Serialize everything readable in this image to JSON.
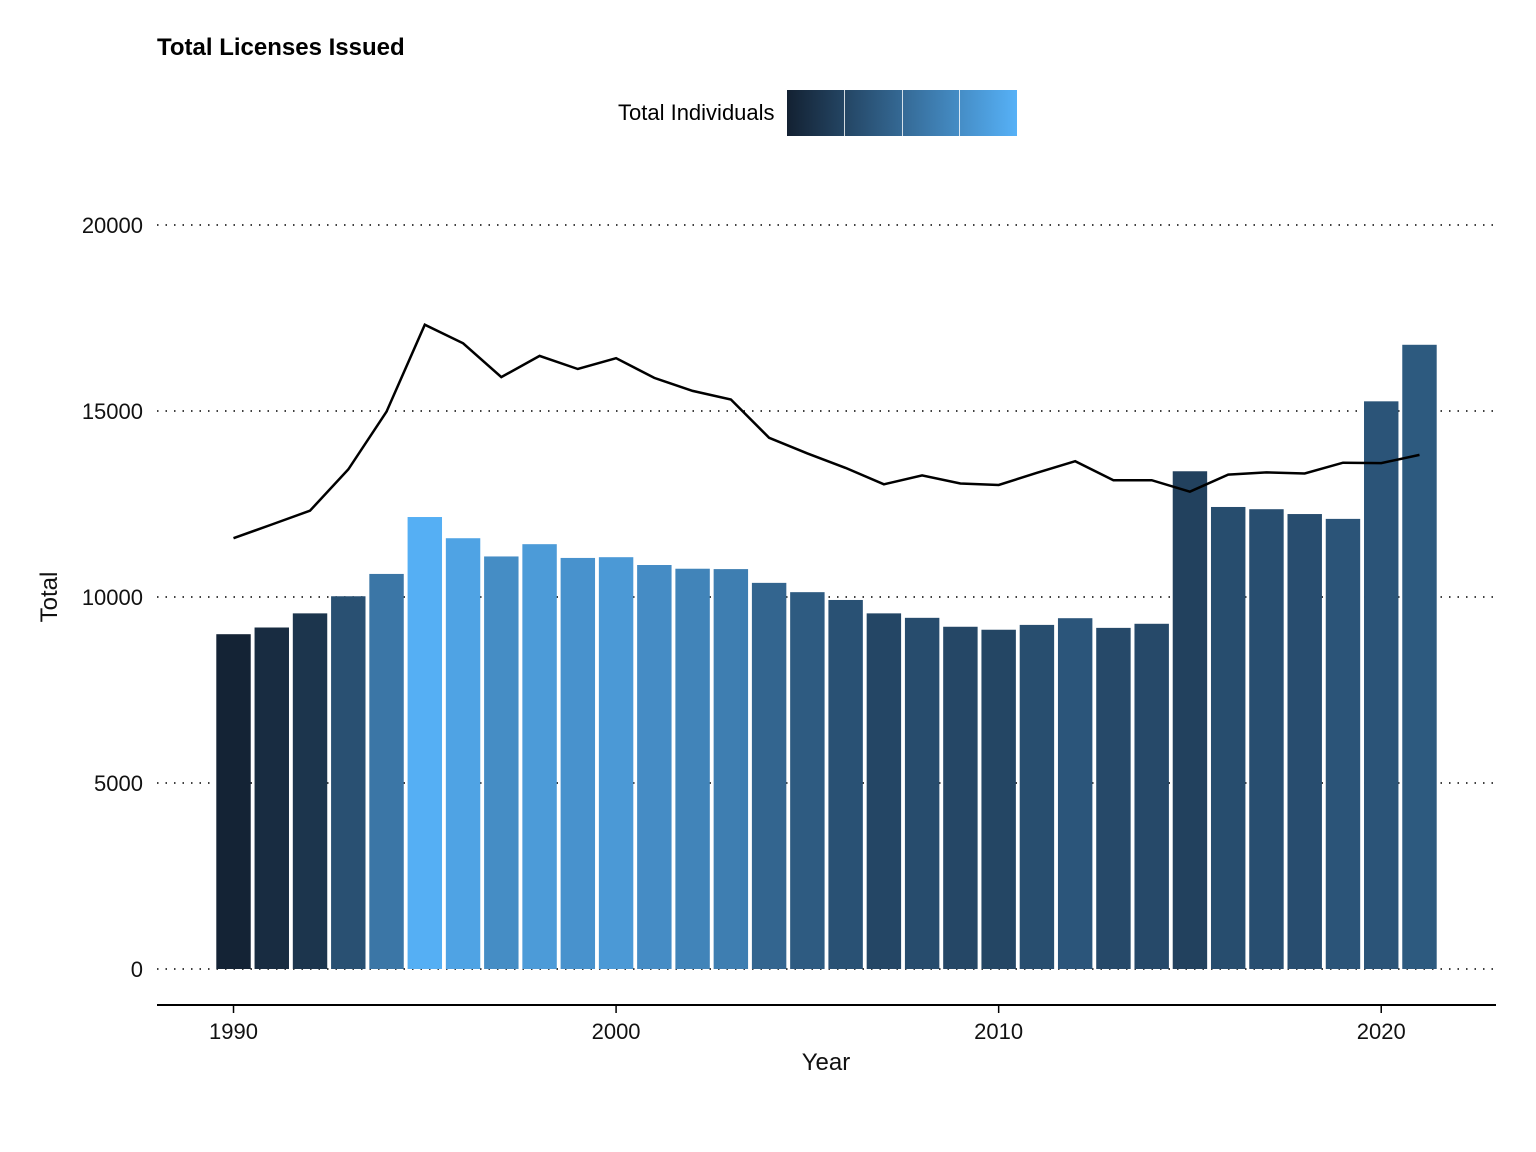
{
  "chart_data": {
    "type": "bar",
    "title": "Total Licenses Issued",
    "xlabel": "Year",
    "ylabel": "Total",
    "xlim": [
      1988,
      2023
    ],
    "ylim": [
      0,
      20000
    ],
    "x_ticks": [
      1990,
      2000,
      2010,
      2020
    ],
    "y_ticks": [
      0,
      5000,
      10000,
      15000,
      20000
    ],
    "grid": "horizontal dotted",
    "legend": {
      "title": "Total Individuals",
      "placement": "top",
      "gradient": [
        "#132132",
        "#56B1F7"
      ],
      "range": [
        11500,
        17400
      ]
    },
    "x": [
      1990,
      1991,
      1992,
      1993,
      1994,
      1995,
      1996,
      1997,
      1998,
      1999,
      2000,
      2001,
      2002,
      2003,
      2004,
      2005,
      2006,
      2007,
      2008,
      2009,
      2010,
      2011,
      2012,
      2013,
      2014,
      2015,
      2016,
      2017,
      2018,
      2019,
      2020,
      2021
    ],
    "series": [
      {
        "type": "bar",
        "values": [
          9000,
          9180,
          9560,
          10020,
          10620,
          12150,
          11580,
          11090,
          11420,
          11050,
          11070,
          10860,
          10760,
          10750,
          10380,
          10130,
          9920,
          9560,
          9440,
          9200,
          9120,
          9250,
          9430,
          9170,
          9280,
          13380,
          12420,
          12360,
          12230,
          12100,
          15260,
          16780
        ],
        "fill_values": [
          11580,
          11950,
          12320,
          13430,
          14980,
          17320,
          16820,
          15910,
          16480,
          16130,
          16420,
          15890,
          15540,
          15310,
          14280,
          13860,
          13470,
          13030,
          13270,
          13050,
          13010,
          13340,
          13650,
          13140,
          13140,
          12830,
          13290,
          13350,
          13320,
          13610,
          13600,
          13820
        ]
      },
      {
        "type": "line",
        "values": [
          11580,
          11950,
          12320,
          13430,
          14980,
          17320,
          16820,
          15910,
          16480,
          16130,
          16420,
          15890,
          15540,
          15310,
          14280,
          13860,
          13470,
          13030,
          13270,
          13050,
          13010,
          13340,
          13650,
          13140,
          13140,
          12830,
          13290,
          13350,
          13320,
          13610,
          13600,
          13820
        ]
      }
    ]
  }
}
